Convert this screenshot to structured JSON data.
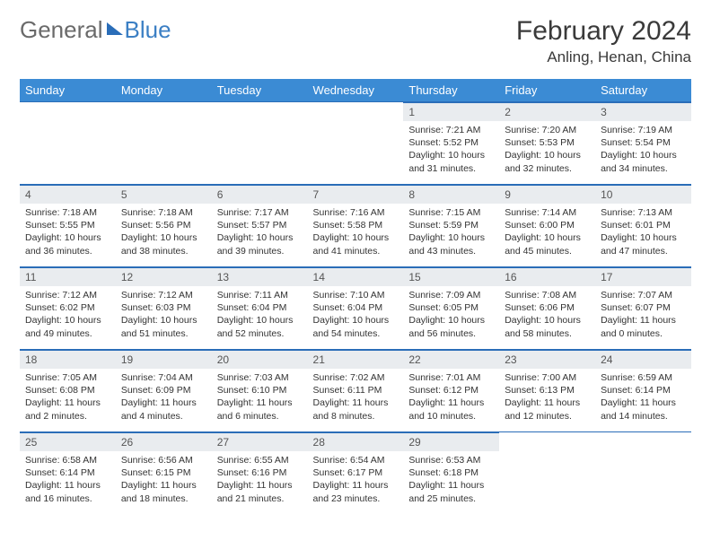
{
  "brand": {
    "left": "General",
    "right": "Blue"
  },
  "title": "February 2024",
  "location": "Anling, Henan, China",
  "colors": {
    "header_bg": "#3b8bd4",
    "header_text": "#ffffff",
    "daynum_bg": "#e9ecef",
    "border": "#2a6db8",
    "text": "#333333"
  },
  "weekdays": [
    "Sunday",
    "Monday",
    "Tuesday",
    "Wednesday",
    "Thursday",
    "Friday",
    "Saturday"
  ],
  "first_weekday_index": 4,
  "days": [
    {
      "n": 1,
      "sunrise": "7:21 AM",
      "sunset": "5:52 PM",
      "daylight": "10 hours and 31 minutes."
    },
    {
      "n": 2,
      "sunrise": "7:20 AM",
      "sunset": "5:53 PM",
      "daylight": "10 hours and 32 minutes."
    },
    {
      "n": 3,
      "sunrise": "7:19 AM",
      "sunset": "5:54 PM",
      "daylight": "10 hours and 34 minutes."
    },
    {
      "n": 4,
      "sunrise": "7:18 AM",
      "sunset": "5:55 PM",
      "daylight": "10 hours and 36 minutes."
    },
    {
      "n": 5,
      "sunrise": "7:18 AM",
      "sunset": "5:56 PM",
      "daylight": "10 hours and 38 minutes."
    },
    {
      "n": 6,
      "sunrise": "7:17 AM",
      "sunset": "5:57 PM",
      "daylight": "10 hours and 39 minutes."
    },
    {
      "n": 7,
      "sunrise": "7:16 AM",
      "sunset": "5:58 PM",
      "daylight": "10 hours and 41 minutes."
    },
    {
      "n": 8,
      "sunrise": "7:15 AM",
      "sunset": "5:59 PM",
      "daylight": "10 hours and 43 minutes."
    },
    {
      "n": 9,
      "sunrise": "7:14 AM",
      "sunset": "6:00 PM",
      "daylight": "10 hours and 45 minutes."
    },
    {
      "n": 10,
      "sunrise": "7:13 AM",
      "sunset": "6:01 PM",
      "daylight": "10 hours and 47 minutes."
    },
    {
      "n": 11,
      "sunrise": "7:12 AM",
      "sunset": "6:02 PM",
      "daylight": "10 hours and 49 minutes."
    },
    {
      "n": 12,
      "sunrise": "7:12 AM",
      "sunset": "6:03 PM",
      "daylight": "10 hours and 51 minutes."
    },
    {
      "n": 13,
      "sunrise": "7:11 AM",
      "sunset": "6:04 PM",
      "daylight": "10 hours and 52 minutes."
    },
    {
      "n": 14,
      "sunrise": "7:10 AM",
      "sunset": "6:04 PM",
      "daylight": "10 hours and 54 minutes."
    },
    {
      "n": 15,
      "sunrise": "7:09 AM",
      "sunset": "6:05 PM",
      "daylight": "10 hours and 56 minutes."
    },
    {
      "n": 16,
      "sunrise": "7:08 AM",
      "sunset": "6:06 PM",
      "daylight": "10 hours and 58 minutes."
    },
    {
      "n": 17,
      "sunrise": "7:07 AM",
      "sunset": "6:07 PM",
      "daylight": "11 hours and 0 minutes."
    },
    {
      "n": 18,
      "sunrise": "7:05 AM",
      "sunset": "6:08 PM",
      "daylight": "11 hours and 2 minutes."
    },
    {
      "n": 19,
      "sunrise": "7:04 AM",
      "sunset": "6:09 PM",
      "daylight": "11 hours and 4 minutes."
    },
    {
      "n": 20,
      "sunrise": "7:03 AM",
      "sunset": "6:10 PM",
      "daylight": "11 hours and 6 minutes."
    },
    {
      "n": 21,
      "sunrise": "7:02 AM",
      "sunset": "6:11 PM",
      "daylight": "11 hours and 8 minutes."
    },
    {
      "n": 22,
      "sunrise": "7:01 AM",
      "sunset": "6:12 PM",
      "daylight": "11 hours and 10 minutes."
    },
    {
      "n": 23,
      "sunrise": "7:00 AM",
      "sunset": "6:13 PM",
      "daylight": "11 hours and 12 minutes."
    },
    {
      "n": 24,
      "sunrise": "6:59 AM",
      "sunset": "6:14 PM",
      "daylight": "11 hours and 14 minutes."
    },
    {
      "n": 25,
      "sunrise": "6:58 AM",
      "sunset": "6:14 PM",
      "daylight": "11 hours and 16 minutes."
    },
    {
      "n": 26,
      "sunrise": "6:56 AM",
      "sunset": "6:15 PM",
      "daylight": "11 hours and 18 minutes."
    },
    {
      "n": 27,
      "sunrise": "6:55 AM",
      "sunset": "6:16 PM",
      "daylight": "11 hours and 21 minutes."
    },
    {
      "n": 28,
      "sunrise": "6:54 AM",
      "sunset": "6:17 PM",
      "daylight": "11 hours and 23 minutes."
    },
    {
      "n": 29,
      "sunrise": "6:53 AM",
      "sunset": "6:18 PM",
      "daylight": "11 hours and 25 minutes."
    }
  ],
  "labels": {
    "sunrise": "Sunrise:",
    "sunset": "Sunset:",
    "daylight": "Daylight:"
  }
}
